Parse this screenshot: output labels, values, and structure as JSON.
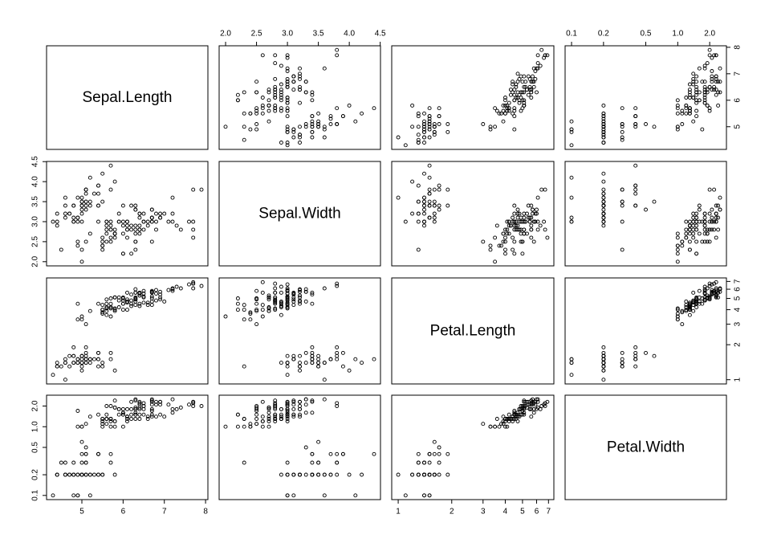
{
  "chart_data": {
    "type": "scatter",
    "variables": [
      "Sepal.Length",
      "Sepal.Width",
      "Petal.Length",
      "Petal.Width"
    ],
    "axis_scale": [
      "linear",
      "linear",
      "log",
      "log"
    ],
    "ranges": [
      [
        4.3,
        7.9
      ],
      [
        2.0,
        4.4
      ],
      [
        1.0,
        6.9
      ],
      [
        0.1,
        2.5
      ]
    ],
    "ticks": [
      [
        5,
        6,
        7,
        8
      ],
      [
        2.0,
        2.5,
        3.0,
        3.5,
        4.0,
        4.5
      ],
      [
        1,
        2,
        3,
        4,
        5,
        6,
        7
      ],
      [
        0.1,
        0.2,
        0.5,
        1.0,
        2.0
      ]
    ],
    "tick_labels": [
      [
        "5",
        "6",
        "7",
        "8"
      ],
      [
        "2.0",
        "2.5",
        "3.0",
        "3.5",
        "4.0",
        "4.5"
      ],
      [
        "1",
        "2",
        "3",
        "4",
        "5",
        "6",
        "7"
      ],
      [
        "0.1",
        "0.2",
        "0.5",
        "1.0",
        "2.0"
      ]
    ],
    "grid": false,
    "observations": [
      [
        5.1,
        3.5,
        1.4,
        0.2
      ],
      [
        4.9,
        3.0,
        1.4,
        0.2
      ],
      [
        4.7,
        3.2,
        1.3,
        0.2
      ],
      [
        4.6,
        3.1,
        1.5,
        0.2
      ],
      [
        5.0,
        3.6,
        1.4,
        0.2
      ],
      [
        5.4,
        3.9,
        1.7,
        0.4
      ],
      [
        4.6,
        3.4,
        1.4,
        0.3
      ],
      [
        5.0,
        3.4,
        1.5,
        0.2
      ],
      [
        4.4,
        2.9,
        1.4,
        0.2
      ],
      [
        4.9,
        3.1,
        1.5,
        0.1
      ],
      [
        5.4,
        3.7,
        1.5,
        0.2
      ],
      [
        4.8,
        3.4,
        1.6,
        0.2
      ],
      [
        4.8,
        3.0,
        1.4,
        0.1
      ],
      [
        4.3,
        3.0,
        1.1,
        0.1
      ],
      [
        5.8,
        4.0,
        1.2,
        0.2
      ],
      [
        5.7,
        4.4,
        1.5,
        0.4
      ],
      [
        5.4,
        3.9,
        1.3,
        0.4
      ],
      [
        5.1,
        3.5,
        1.4,
        0.3
      ],
      [
        5.7,
        3.8,
        1.7,
        0.3
      ],
      [
        5.1,
        3.8,
        1.5,
        0.3
      ],
      [
        5.4,
        3.4,
        1.7,
        0.2
      ],
      [
        5.1,
        3.7,
        1.5,
        0.4
      ],
      [
        4.6,
        3.6,
        1.0,
        0.2
      ],
      [
        5.1,
        3.3,
        1.7,
        0.5
      ],
      [
        4.8,
        3.4,
        1.9,
        0.2
      ],
      [
        5.0,
        3.0,
        1.6,
        0.2
      ],
      [
        5.0,
        3.4,
        1.6,
        0.4
      ],
      [
        5.2,
        3.5,
        1.5,
        0.2
      ],
      [
        5.2,
        3.4,
        1.4,
        0.2
      ],
      [
        4.7,
        3.2,
        1.6,
        0.2
      ],
      [
        4.8,
        3.1,
        1.6,
        0.2
      ],
      [
        5.4,
        3.4,
        1.5,
        0.4
      ],
      [
        5.2,
        4.1,
        1.5,
        0.1
      ],
      [
        5.5,
        4.2,
        1.4,
        0.2
      ],
      [
        4.9,
        3.1,
        1.5,
        0.2
      ],
      [
        5.0,
        3.2,
        1.2,
        0.2
      ],
      [
        5.5,
        3.5,
        1.3,
        0.2
      ],
      [
        4.9,
        3.6,
        1.4,
        0.1
      ],
      [
        4.4,
        3.0,
        1.3,
        0.2
      ],
      [
        5.1,
        3.4,
        1.5,
        0.2
      ],
      [
        5.0,
        3.5,
        1.3,
        0.3
      ],
      [
        4.5,
        2.3,
        1.3,
        0.3
      ],
      [
        4.4,
        3.2,
        1.3,
        0.2
      ],
      [
        5.0,
        3.5,
        1.6,
        0.6
      ],
      [
        5.1,
        3.8,
        1.9,
        0.4
      ],
      [
        4.8,
        3.0,
        1.4,
        0.3
      ],
      [
        5.1,
        3.8,
        1.6,
        0.2
      ],
      [
        4.6,
        3.2,
        1.4,
        0.2
      ],
      [
        5.3,
        3.7,
        1.5,
        0.2
      ],
      [
        5.0,
        3.3,
        1.4,
        0.2
      ],
      [
        7.0,
        3.2,
        4.7,
        1.4
      ],
      [
        6.4,
        3.2,
        4.5,
        1.5
      ],
      [
        6.9,
        3.1,
        4.9,
        1.5
      ],
      [
        5.5,
        2.3,
        4.0,
        1.3
      ],
      [
        6.5,
        2.8,
        4.6,
        1.5
      ],
      [
        5.7,
        2.8,
        4.5,
        1.3
      ],
      [
        6.3,
        3.3,
        4.7,
        1.6
      ],
      [
        4.9,
        2.4,
        3.3,
        1.0
      ],
      [
        6.6,
        2.9,
        4.6,
        1.3
      ],
      [
        5.2,
        2.7,
        3.9,
        1.4
      ],
      [
        5.0,
        2.0,
        3.5,
        1.0
      ],
      [
        5.9,
        3.0,
        4.2,
        1.5
      ],
      [
        6.0,
        2.2,
        4.0,
        1.0
      ],
      [
        6.1,
        2.9,
        4.7,
        1.4
      ],
      [
        5.6,
        2.9,
        3.6,
        1.3
      ],
      [
        6.7,
        3.1,
        4.4,
        1.4
      ],
      [
        5.6,
        3.0,
        4.5,
        1.5
      ],
      [
        5.8,
        2.7,
        4.1,
        1.0
      ],
      [
        6.2,
        2.2,
        4.5,
        1.5
      ],
      [
        5.6,
        2.5,
        3.9,
        1.1
      ],
      [
        5.9,
        3.2,
        4.8,
        1.8
      ],
      [
        6.1,
        2.8,
        4.0,
        1.3
      ],
      [
        6.3,
        2.5,
        4.9,
        1.5
      ],
      [
        6.1,
        2.8,
        4.7,
        1.2
      ],
      [
        6.4,
        2.9,
        4.3,
        1.3
      ],
      [
        6.6,
        3.0,
        4.4,
        1.4
      ],
      [
        6.8,
        2.8,
        4.8,
        1.4
      ],
      [
        6.7,
        3.0,
        5.0,
        1.7
      ],
      [
        6.0,
        2.9,
        4.5,
        1.5
      ],
      [
        5.7,
        2.6,
        3.5,
        1.0
      ],
      [
        5.5,
        2.4,
        3.8,
        1.1
      ],
      [
        5.5,
        2.4,
        3.7,
        1.0
      ],
      [
        5.8,
        2.7,
        3.9,
        1.2
      ],
      [
        6.0,
        2.7,
        5.1,
        1.6
      ],
      [
        5.4,
        3.0,
        4.5,
        1.5
      ],
      [
        6.0,
        3.4,
        4.5,
        1.6
      ],
      [
        6.7,
        3.1,
        4.7,
        1.5
      ],
      [
        6.3,
        2.3,
        4.4,
        1.3
      ],
      [
        5.6,
        3.0,
        4.1,
        1.3
      ],
      [
        5.5,
        2.5,
        4.0,
        1.3
      ],
      [
        5.5,
        2.6,
        4.4,
        1.2
      ],
      [
        6.1,
        3.0,
        4.6,
        1.4
      ],
      [
        5.8,
        2.6,
        4.0,
        1.2
      ],
      [
        5.0,
        2.3,
        3.3,
        1.0
      ],
      [
        5.6,
        2.7,
        4.2,
        1.3
      ],
      [
        5.7,
        3.0,
        4.2,
        1.2
      ],
      [
        5.7,
        2.9,
        4.2,
        1.3
      ],
      [
        6.2,
        2.9,
        4.3,
        1.3
      ],
      [
        5.1,
        2.5,
        3.0,
        1.1
      ],
      [
        5.7,
        2.8,
        4.1,
        1.3
      ],
      [
        6.3,
        3.3,
        6.0,
        2.5
      ],
      [
        5.8,
        2.7,
        5.1,
        1.9
      ],
      [
        7.1,
        3.0,
        5.9,
        2.1
      ],
      [
        6.3,
        2.9,
        5.6,
        1.8
      ],
      [
        6.5,
        3.0,
        5.8,
        2.2
      ],
      [
        7.6,
        3.0,
        6.6,
        2.1
      ],
      [
        4.9,
        2.5,
        4.5,
        1.7
      ],
      [
        7.3,
        2.9,
        6.3,
        1.8
      ],
      [
        6.7,
        2.5,
        5.8,
        1.8
      ],
      [
        7.2,
        3.6,
        6.1,
        2.5
      ],
      [
        6.5,
        3.2,
        5.1,
        2.0
      ],
      [
        6.4,
        2.7,
        5.3,
        1.9
      ],
      [
        6.8,
        3.0,
        5.5,
        2.1
      ],
      [
        5.7,
        2.5,
        5.0,
        2.0
      ],
      [
        5.8,
        2.8,
        5.1,
        2.4
      ],
      [
        6.4,
        3.2,
        5.3,
        2.3
      ],
      [
        6.5,
        3.0,
        5.5,
        1.8
      ],
      [
        7.7,
        3.8,
        6.7,
        2.2
      ],
      [
        7.7,
        2.6,
        6.9,
        2.3
      ],
      [
        6.0,
        2.2,
        5.0,
        1.5
      ],
      [
        6.9,
        3.2,
        5.7,
        2.3
      ],
      [
        5.6,
        2.8,
        4.9,
        2.0
      ],
      [
        7.7,
        2.8,
        6.7,
        2.0
      ],
      [
        6.3,
        2.7,
        4.9,
        1.8
      ],
      [
        6.7,
        3.3,
        5.7,
        2.1
      ],
      [
        7.2,
        3.2,
        6.0,
        1.8
      ],
      [
        6.2,
        2.8,
        4.8,
        1.8
      ],
      [
        6.1,
        3.0,
        4.9,
        1.8
      ],
      [
        6.4,
        2.8,
        5.6,
        2.1
      ],
      [
        7.2,
        3.0,
        5.8,
        1.6
      ],
      [
        7.4,
        2.8,
        6.1,
        1.9
      ],
      [
        7.9,
        3.8,
        6.4,
        2.0
      ],
      [
        6.4,
        2.8,
        5.6,
        2.2
      ],
      [
        6.3,
        2.8,
        5.1,
        1.5
      ],
      [
        6.1,
        2.6,
        5.6,
        1.4
      ],
      [
        7.7,
        3.0,
        6.1,
        2.3
      ],
      [
        6.3,
        3.4,
        5.6,
        2.4
      ],
      [
        6.4,
        3.1,
        5.5,
        1.8
      ],
      [
        6.0,
        3.0,
        4.8,
        1.8
      ],
      [
        6.9,
        3.1,
        5.4,
        2.1
      ],
      [
        6.7,
        3.1,
        5.6,
        2.4
      ],
      [
        6.9,
        3.1,
        5.1,
        2.3
      ],
      [
        5.8,
        2.7,
        5.1,
        1.9
      ],
      [
        6.8,
        3.2,
        5.9,
        2.3
      ],
      [
        6.7,
        3.3,
        5.7,
        2.5
      ],
      [
        6.7,
        3.0,
        5.2,
        2.3
      ],
      [
        6.3,
        2.5,
        5.0,
        1.9
      ],
      [
        6.5,
        3.0,
        5.2,
        2.0
      ],
      [
        6.2,
        3.4,
        5.4,
        2.3
      ],
      [
        5.9,
        3.0,
        5.1,
        1.8
      ]
    ]
  }
}
